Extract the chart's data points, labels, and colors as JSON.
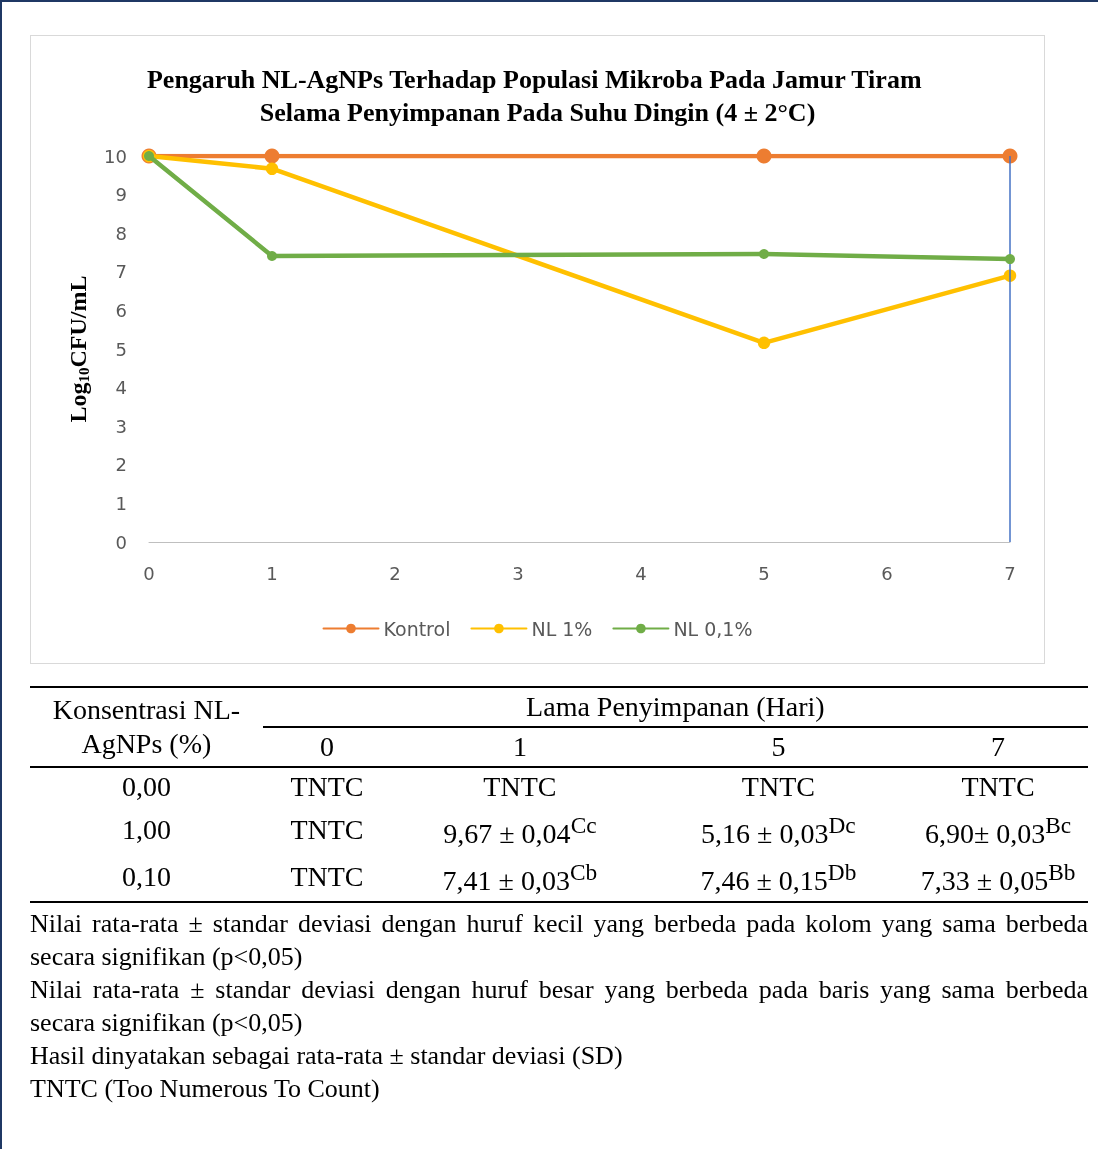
{
  "chart_data": {
    "type": "line",
    "title": "Pengaruh NL-AgNPs Terhadap Populasi Mikroba Pada Jamur Tiram Selama Penyimpanan Pada Suhu Dingin (4 ± 2°C)",
    "ylabel": "Log$_{10}$CFU/mL",
    "x": [
      0,
      1,
      5,
      7
    ],
    "series": [
      {
        "name": "Kontrol",
        "color": "#ed7d31",
        "values": [
          10,
          10,
          10,
          10
        ]
      },
      {
        "name": "NL 1%",
        "color": "#ffc000",
        "values": [
          10,
          9.67,
          5.16,
          6.9
        ]
      },
      {
        "name": "NL 0,1%",
        "color": "#70ad47",
        "values": [
          10,
          7.41,
          7.46,
          7.33
        ]
      }
    ],
    "xlim": [
      0,
      7
    ],
    "xticks": [
      0,
      1,
      2,
      3,
      4,
      5,
      6,
      7
    ],
    "ylim": [
      0,
      10
    ],
    "yticks": [
      0,
      1,
      2,
      3,
      4,
      5,
      6,
      7,
      8,
      9,
      10
    ],
    "ref_lines": [
      {
        "axis": "x",
        "value": 7,
        "color": "#4472c4"
      }
    ],
    "grid": false,
    "legend": "bottom",
    "marker": "circle",
    "line_style": "solid",
    "annotations": [
      "Konsentrasi NL-AgNPs (%)",
      "Lama Penyimpanan (Hari)",
      "0",
      "1",
      "5",
      "7",
      "0,00",
      "TNTC",
      "TNTC",
      "TNTC",
      "TNTC",
      "1,00",
      "TNTC",
      "9,67 ± 0,04$^{Cc}$",
      "5,16 ± 0,03$^{Dc}$",
      "6,90± 0,03$^{Bc}$",
      "0,10",
      "TNTC",
      "7,41 ± 0,03$^{Cb}$",
      "7,46 ± 0,15$^{Db}$",
      "7,33 ± 0,05$^{Bb}$",
      "Nilai rata-rata ± standar deviasi dengan huruf kecil yang berbeda pada kolom yang sama berbeda secara signifikan (p<0,05)",
      "Nilai rata-rata ± standar deviasi dengan huruf besar yang berbeda pada baris yang sama berbeda secara signifikan (p<0,05)",
      "Hasil dinyatakan sebagai rata-rata ± standar deviasi (SD)",
      "TNTC (Too Numerous To Count)"
    ]
  }
}
